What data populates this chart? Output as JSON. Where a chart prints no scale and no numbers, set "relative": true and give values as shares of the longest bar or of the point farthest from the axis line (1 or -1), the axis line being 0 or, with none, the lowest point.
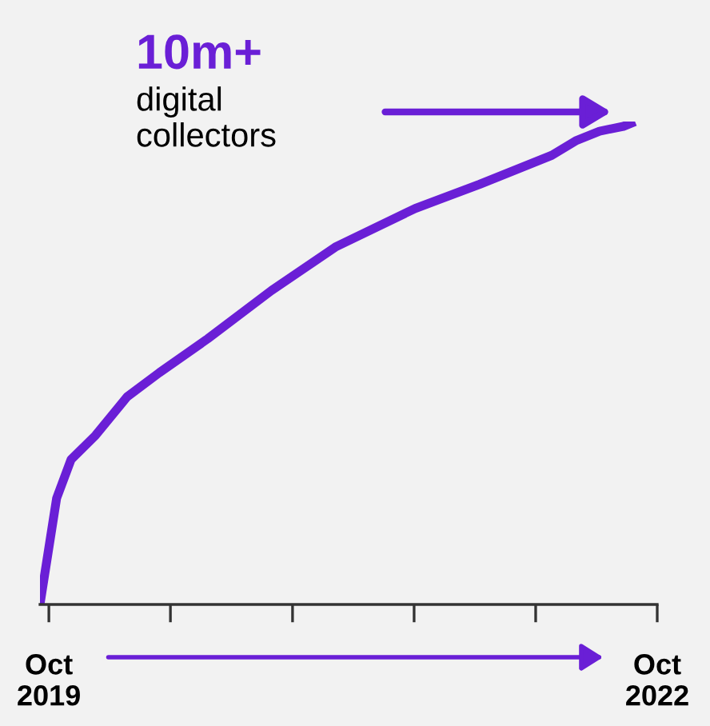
{
  "chart_data": {
    "type": "line",
    "relative": true,
    "x": [
      "2019-09-15",
      "2019-10-15",
      "2019-11-10",
      "2019-12-24",
      "2020-02-19",
      "2020-04-17",
      "2020-07-13",
      "2020-11-05",
      "2021-02-28",
      "2021-07-22",
      "2021-11-15",
      "2022-03-25",
      "2022-05-07",
      "2022-06-19",
      "2022-08-01",
      "2022-08-22"
    ],
    "series": [
      {
        "color": "#6a1fd6",
        "values": [
          0,
          0.22,
          0.3,
          0.35,
          0.43,
          0.48,
          0.55,
          0.65,
          0.74,
          0.82,
          0.87,
          0.93,
          0.96,
          0.98,
          0.99,
          1
        ]
      }
    ],
    "xlim": [
      "2019-09-15",
      "2022-10-01"
    ],
    "xticks": [
      {
        "value": "2019-10-01",
        "label": "Oct\n2019"
      },
      {
        "value": "2020-05-07",
        "label": null
      },
      {
        "value": "2020-12-13",
        "label": null
      },
      {
        "value": "2021-07-20",
        "label": null
      },
      {
        "value": "2022-02-24",
        "label": null
      },
      {
        "value": "2022-10-01",
        "label": "Oct\n2022"
      }
    ],
    "title": "10m+",
    "annotations": [
      "digital\ncollectors"
    ],
    "grid": false,
    "legend": false,
    "marker": "none",
    "line_style": "solid"
  }
}
